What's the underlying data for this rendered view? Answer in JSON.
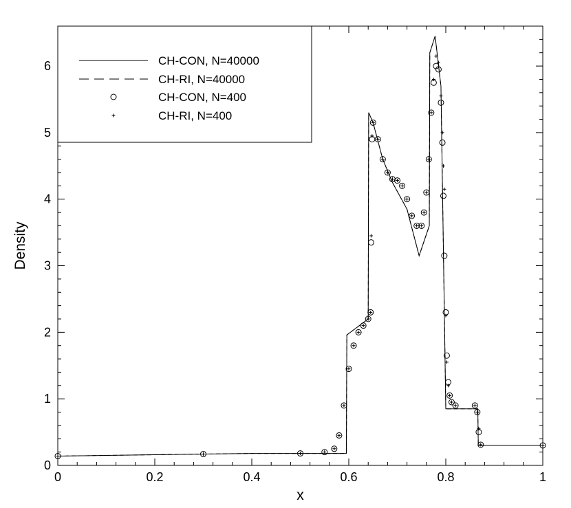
{
  "chart_data": {
    "type": "line",
    "title": "",
    "xlabel": "x",
    "ylabel": "Density",
    "xlim": [
      0,
      1
    ],
    "ylim": [
      0,
      6.6
    ],
    "x_ticks": [
      0,
      0.2,
      0.4,
      0.6,
      0.8,
      1
    ],
    "x_tick_labels": [
      "0",
      "0.2",
      "0.4",
      "0.6",
      "0.8",
      "1"
    ],
    "y_ticks": [
      0,
      1,
      2,
      3,
      4,
      5,
      6
    ],
    "y_tick_labels": [
      "0",
      "1",
      "2",
      "3",
      "4",
      "5",
      "6"
    ],
    "grid": false,
    "legend_position": "top-left",
    "series": [
      {
        "name": "CH-CON, N=40000",
        "style": "solid-line",
        "points": [
          [
            0,
            0.14
          ],
          [
            0.2,
            0.16
          ],
          [
            0.4,
            0.18
          ],
          [
            0.595,
            0.18
          ],
          [
            0.596,
            1.96
          ],
          [
            0.64,
            2.2
          ],
          [
            0.641,
            5.3
          ],
          [
            0.65,
            5.15
          ],
          [
            0.67,
            4.6
          ],
          [
            0.69,
            4.25
          ],
          [
            0.72,
            3.85
          ],
          [
            0.745,
            3.15
          ],
          [
            0.766,
            3.6
          ],
          [
            0.767,
            6.2
          ],
          [
            0.778,
            6.45
          ],
          [
            0.79,
            5.7
          ],
          [
            0.8,
            0.85
          ],
          [
            0.866,
            0.85
          ],
          [
            0.867,
            0.3
          ],
          [
            1,
            0.3
          ]
        ]
      },
      {
        "name": "CH-RI, N=40000",
        "style": "dashed-line",
        "points": [
          [
            0,
            0.14
          ],
          [
            0.2,
            0.16
          ],
          [
            0.4,
            0.18
          ],
          [
            0.595,
            0.18
          ],
          [
            0.596,
            1.96
          ],
          [
            0.64,
            2.2
          ],
          [
            0.641,
            5.3
          ],
          [
            0.65,
            5.15
          ],
          [
            0.67,
            4.6
          ],
          [
            0.69,
            4.25
          ],
          [
            0.72,
            3.85
          ],
          [
            0.745,
            3.15
          ],
          [
            0.766,
            3.6
          ],
          [
            0.767,
            6.2
          ],
          [
            0.778,
            6.45
          ],
          [
            0.79,
            5.7
          ],
          [
            0.8,
            0.85
          ],
          [
            0.866,
            0.85
          ],
          [
            0.867,
            0.3
          ],
          [
            1,
            0.3
          ]
        ]
      },
      {
        "name": "CH-CON, N=400",
        "style": "open-circle",
        "points": [
          [
            0,
            0.14
          ],
          [
            0.3,
            0.17
          ],
          [
            0.5,
            0.18
          ],
          [
            0.55,
            0.2
          ],
          [
            0.57,
            0.25
          ],
          [
            0.58,
            0.45
          ],
          [
            0.59,
            0.9
          ],
          [
            0.6,
            1.45
          ],
          [
            0.61,
            1.8
          ],
          [
            0.62,
            2.0
          ],
          [
            0.63,
            2.1
          ],
          [
            0.64,
            2.2
          ],
          [
            0.645,
            2.3
          ],
          [
            0.646,
            3.35
          ],
          [
            0.648,
            4.9
          ],
          [
            0.65,
            5.15
          ],
          [
            0.66,
            4.9
          ],
          [
            0.67,
            4.6
          ],
          [
            0.68,
            4.4
          ],
          [
            0.69,
            4.3
          ],
          [
            0.7,
            4.28
          ],
          [
            0.71,
            4.2
          ],
          [
            0.72,
            4.0
          ],
          [
            0.73,
            3.75
          ],
          [
            0.74,
            3.6
          ],
          [
            0.75,
            3.6
          ],
          [
            0.755,
            3.8
          ],
          [
            0.76,
            4.1
          ],
          [
            0.765,
            4.6
          ],
          [
            0.77,
            5.3
          ],
          [
            0.775,
            5.75
          ],
          [
            0.78,
            6.0
          ],
          [
            0.785,
            5.95
          ],
          [
            0.79,
            5.45
          ],
          [
            0.793,
            4.85
          ],
          [
            0.795,
            4.05
          ],
          [
            0.797,
            3.15
          ],
          [
            0.8,
            2.3
          ],
          [
            0.802,
            1.65
          ],
          [
            0.805,
            1.25
          ],
          [
            0.808,
            1.05
          ],
          [
            0.812,
            0.95
          ],
          [
            0.82,
            0.9
          ],
          [
            0.86,
            0.9
          ],
          [
            0.865,
            0.8
          ],
          [
            0.868,
            0.5
          ],
          [
            0.872,
            0.31
          ],
          [
            1,
            0.3
          ]
        ]
      },
      {
        "name": "CH-RI, N=400",
        "style": "plus",
        "points": [
          [
            0,
            0.14
          ],
          [
            0.3,
            0.17
          ],
          [
            0.5,
            0.18
          ],
          [
            0.55,
            0.2
          ],
          [
            0.57,
            0.25
          ],
          [
            0.58,
            0.45
          ],
          [
            0.59,
            0.9
          ],
          [
            0.6,
            1.45
          ],
          [
            0.61,
            1.8
          ],
          [
            0.62,
            2.0
          ],
          [
            0.63,
            2.1
          ],
          [
            0.64,
            2.2
          ],
          [
            0.645,
            2.3
          ],
          [
            0.646,
            3.45
          ],
          [
            0.648,
            4.95
          ],
          [
            0.65,
            5.15
          ],
          [
            0.66,
            4.9
          ],
          [
            0.67,
            4.6
          ],
          [
            0.68,
            4.4
          ],
          [
            0.69,
            4.3
          ],
          [
            0.7,
            4.28
          ],
          [
            0.71,
            4.2
          ],
          [
            0.72,
            4.0
          ],
          [
            0.73,
            3.75
          ],
          [
            0.74,
            3.6
          ],
          [
            0.75,
            3.6
          ],
          [
            0.755,
            3.8
          ],
          [
            0.76,
            4.1
          ],
          [
            0.765,
            4.6
          ],
          [
            0.77,
            5.3
          ],
          [
            0.775,
            5.8
          ],
          [
            0.78,
            6.15
          ],
          [
            0.785,
            6.05
          ],
          [
            0.79,
            5.55
          ],
          [
            0.793,
            5.0
          ],
          [
            0.795,
            4.5
          ],
          [
            0.797,
            4.15
          ],
          [
            0.8,
            2.25
          ],
          [
            0.802,
            1.55
          ],
          [
            0.805,
            1.2
          ],
          [
            0.808,
            1.05
          ],
          [
            0.812,
            0.95
          ],
          [
            0.82,
            0.9
          ],
          [
            0.86,
            0.9
          ],
          [
            0.865,
            0.8
          ],
          [
            0.868,
            0.55
          ],
          [
            0.872,
            0.31
          ],
          [
            1,
            0.3
          ]
        ]
      }
    ]
  }
}
